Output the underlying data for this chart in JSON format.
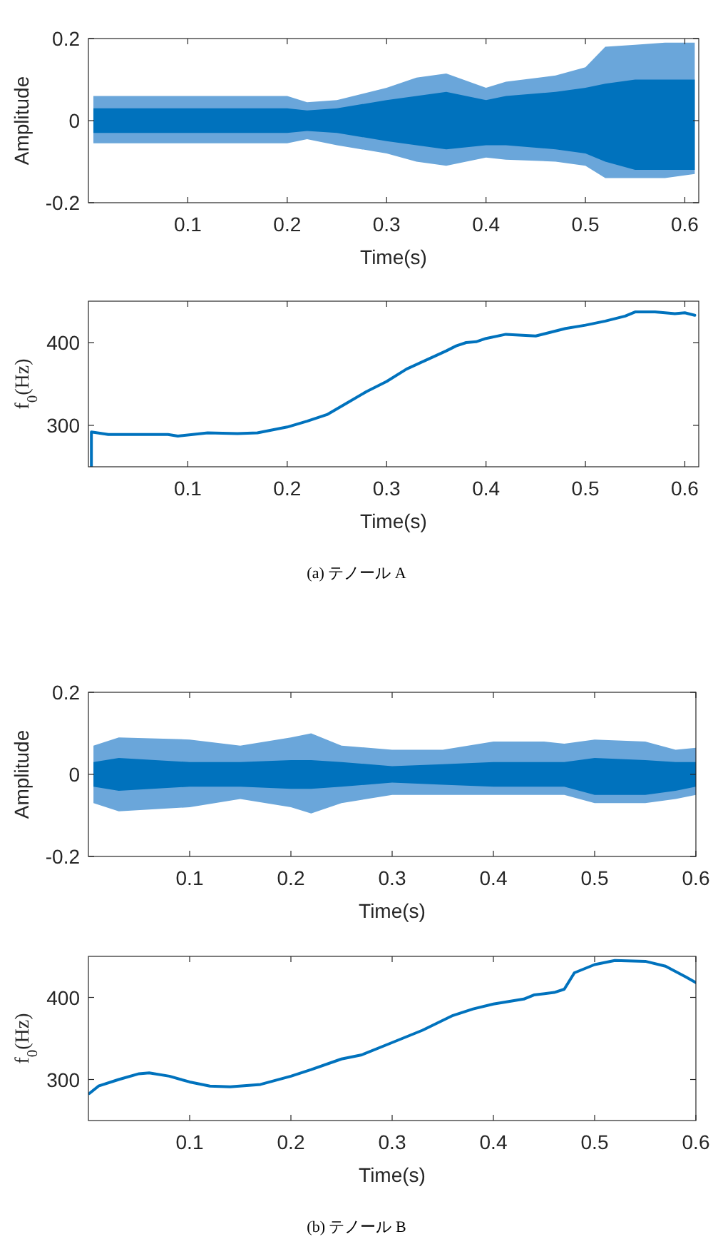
{
  "chart_data": [
    {
      "type": "line",
      "xlabel": "Time(s)",
      "ylabel": "Amplitude",
      "xlim": [
        0,
        0.614
      ],
      "ylim": [
        -0.2,
        0.2
      ],
      "xticks": [
        0.1,
        0.2,
        0.3,
        0.4,
        0.5,
        0.6
      ],
      "yticks": [
        -0.2,
        0,
        0.2
      ],
      "series": [
        {
          "color": "#6aa6da",
          "x": [
            0.005,
            0.05,
            0.1,
            0.15,
            0.2,
            0.22,
            0.25,
            0.3,
            0.33,
            0.36,
            0.4,
            0.42,
            0.47,
            0.5,
            0.52,
            0.55,
            0.58,
            0.61
          ],
          "values": [
            null,
            null,
            null,
            null,
            null,
            null,
            null,
            null,
            null,
            null,
            null,
            null,
            null,
            null,
            null,
            null,
            null,
            null
          ],
          "upper": [
            0.06,
            0.06,
            0.06,
            0.06,
            0.06,
            0.045,
            0.05,
            0.08,
            0.105,
            0.115,
            0.08,
            0.095,
            0.11,
            0.13,
            0.18,
            0.185,
            0.19,
            0.19
          ],
          "lower": [
            -0.055,
            -0.055,
            -0.055,
            -0.055,
            -0.055,
            -0.045,
            -0.06,
            -0.08,
            -0.1,
            -0.11,
            -0.09,
            -0.095,
            -0.1,
            -0.11,
            -0.14,
            -0.14,
            -0.14,
            -0.13
          ]
        },
        {
          "color": "#0072bd",
          "x": [
            0.005,
            0.05,
            0.1,
            0.15,
            0.2,
            0.22,
            0.25,
            0.3,
            0.33,
            0.36,
            0.4,
            0.42,
            0.47,
            0.5,
            0.52,
            0.55,
            0.58,
            0.61
          ],
          "values": [
            null,
            null,
            null,
            null,
            null,
            null,
            null,
            null,
            null,
            null,
            null,
            null,
            null,
            null,
            null,
            null,
            null,
            null
          ],
          "upper": [
            0.03,
            0.03,
            0.03,
            0.03,
            0.03,
            0.025,
            0.03,
            0.05,
            0.06,
            0.07,
            0.05,
            0.06,
            0.07,
            0.08,
            0.09,
            0.1,
            0.1,
            0.1
          ],
          "lower": [
            -0.03,
            -0.03,
            -0.03,
            -0.03,
            -0.03,
            -0.025,
            -0.03,
            -0.05,
            -0.06,
            -0.07,
            -0.06,
            -0.06,
            -0.07,
            -0.08,
            -0.1,
            -0.12,
            -0.12,
            -0.12
          ]
        }
      ]
    },
    {
      "type": "line",
      "xlabel": "Time(s)",
      "ylabel": "f$_{0}$(Hz)",
      "xlim": [
        0,
        0.614
      ],
      "ylim": [
        250,
        450
      ],
      "xticks": [
        0.1,
        0.2,
        0.3,
        0.4,
        0.5,
        0.6
      ],
      "yticks": [
        300,
        400
      ],
      "annotations": [
        "(a) テノール A"
      ],
      "series": [
        {
          "color": "#0072bd",
          "x": [
            0.003,
            0.003,
            0.02,
            0.08,
            0.09,
            0.12,
            0.15,
            0.17,
            0.2,
            0.22,
            0.24,
            0.26,
            0.28,
            0.3,
            0.32,
            0.34,
            0.36,
            0.37,
            0.38,
            0.39,
            0.4,
            0.42,
            0.45,
            0.48,
            0.5,
            0.52,
            0.54,
            0.55,
            0.57,
            0.59,
            0.6,
            0.61
          ],
          "values": [
            250,
            292,
            289,
            289,
            287,
            291,
            290,
            291,
            298,
            305,
            313,
            327,
            341,
            353,
            368,
            379,
            390,
            396,
            400,
            401,
            405,
            410,
            408,
            417,
            421,
            426,
            432,
            437,
            437,
            435,
            436,
            433
          ]
        }
      ]
    },
    {
      "type": "line",
      "xlabel": "Time(s)",
      "ylabel": "Amplitude",
      "xlim": [
        0,
        0.6
      ],
      "ylim": [
        -0.2,
        0.2
      ],
      "xticks": [
        0.1,
        0.2,
        0.3,
        0.4,
        0.5,
        0.6
      ],
      "yticks": [
        -0.2,
        0,
        0.2
      ],
      "series": [
        {
          "color": "#6aa6da",
          "x": [
            0.005,
            0.03,
            0.1,
            0.15,
            0.2,
            0.22,
            0.25,
            0.3,
            0.35,
            0.4,
            0.45,
            0.47,
            0.5,
            0.55,
            0.58,
            0.6
          ],
          "values": [
            null,
            null,
            null,
            null,
            null,
            null,
            null,
            null,
            null,
            null,
            null,
            null,
            null,
            null,
            null,
            null
          ],
          "upper": [
            0.07,
            0.09,
            0.085,
            0.07,
            0.09,
            0.1,
            0.07,
            0.06,
            0.06,
            0.08,
            0.08,
            0.075,
            0.085,
            0.08,
            0.06,
            0.065
          ],
          "lower": [
            -0.07,
            -0.09,
            -0.08,
            -0.06,
            -0.08,
            -0.095,
            -0.07,
            -0.05,
            -0.05,
            -0.05,
            -0.05,
            -0.05,
            -0.07,
            -0.07,
            -0.06,
            -0.05
          ]
        },
        {
          "color": "#0072bd",
          "x": [
            0.005,
            0.03,
            0.1,
            0.15,
            0.2,
            0.22,
            0.25,
            0.3,
            0.35,
            0.4,
            0.45,
            0.47,
            0.5,
            0.55,
            0.58,
            0.6
          ],
          "values": [
            null,
            null,
            null,
            null,
            null,
            null,
            null,
            null,
            null,
            null,
            null,
            null,
            null,
            null,
            null,
            null
          ],
          "upper": [
            0.03,
            0.04,
            0.03,
            0.03,
            0.035,
            0.035,
            0.03,
            0.02,
            0.025,
            0.03,
            0.03,
            0.03,
            0.04,
            0.035,
            0.03,
            0.03
          ],
          "lower": [
            -0.03,
            -0.04,
            -0.03,
            -0.03,
            -0.035,
            -0.035,
            -0.03,
            -0.02,
            -0.025,
            -0.03,
            -0.03,
            -0.03,
            -0.05,
            -0.05,
            -0.04,
            -0.03
          ]
        }
      ]
    },
    {
      "type": "line",
      "xlabel": "Time(s)",
      "ylabel": "f$_{0}$(Hz)",
      "xlim": [
        0,
        0.6
      ],
      "ylim": [
        250,
        450
      ],
      "xticks": [
        0.1,
        0.2,
        0.3,
        0.4,
        0.5,
        0.6
      ],
      "yticks": [
        300,
        400
      ],
      "annotations": [
        "(b) テノール B"
      ],
      "series": [
        {
          "color": "#0072bd",
          "x": [
            0.001,
            0.01,
            0.03,
            0.05,
            0.06,
            0.08,
            0.1,
            0.12,
            0.14,
            0.17,
            0.2,
            0.22,
            0.25,
            0.27,
            0.3,
            0.33,
            0.36,
            0.38,
            0.4,
            0.43,
            0.44,
            0.46,
            0.47,
            0.48,
            0.5,
            0.52,
            0.55,
            0.57,
            0.59,
            0.6
          ],
          "values": [
            283,
            292,
            300,
            307,
            308,
            304,
            297,
            292,
            291,
            294,
            304,
            312,
            325,
            330,
            345,
            360,
            378,
            386,
            392,
            398,
            403,
            406,
            410,
            430,
            440,
            445,
            444,
            438,
            425,
            418
          ]
        }
      ]
    }
  ]
}
